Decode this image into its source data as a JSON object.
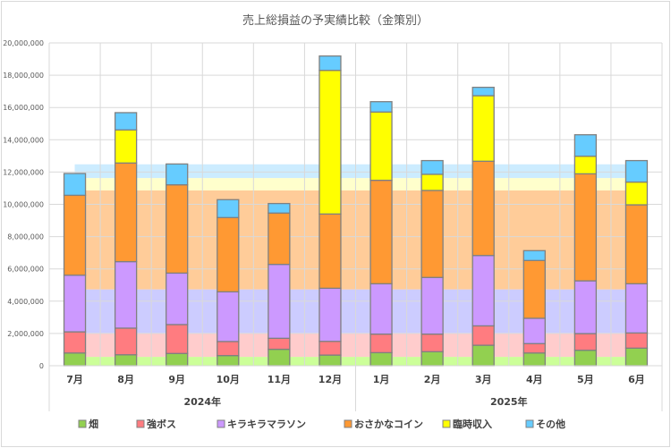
{
  "chart_data": {
    "type": "bar",
    "stacked": true,
    "title": "売上総損益の予実績比較（金策別）",
    "xlabel": "",
    "ylabel": "",
    "ylim": [
      0,
      20000000
    ],
    "ytick_step": 2000000,
    "y_tick_labels": [
      "0",
      "2,000,000",
      "4,000,000",
      "6,000,000",
      "8,000,000",
      "10,000,000",
      "12,000,000",
      "14,000,000",
      "16,000,000",
      "18,000,000",
      "20,000,000"
    ],
    "grid": true,
    "legend_position": "bottom",
    "categories": [
      "7月",
      "8月",
      "9月",
      "10月",
      "11月",
      "12月",
      "1月",
      "2月",
      "3月",
      "4月",
      "5月",
      "6月"
    ],
    "groups": [
      {
        "label": "2024年",
        "count": 6
      },
      {
        "label": "2025年",
        "count": 6
      }
    ],
    "series": [
      {
        "name": "畑",
        "color": "#92D050",
        "budget_color": "#CCFF99",
        "values": [
          790000,
          680000,
          760000,
          630000,
          1020000,
          660000,
          810000,
          870000,
          1270000,
          790000,
          960000,
          1090000
        ],
        "budget": 550000
      },
      {
        "name": "強ボス",
        "color": "#FF7C80",
        "budget_color": "#FFCCCC",
        "values": [
          1310000,
          1650000,
          1790000,
          870000,
          680000,
          850000,
          1150000,
          1090000,
          1200000,
          580000,
          1030000,
          940000
        ],
        "budget": 1480000
      },
      {
        "name": "キラキラマラソン",
        "color": "#CC99FF",
        "budget_color": "#CCCCFF",
        "values": [
          3510000,
          4120000,
          3190000,
          3080000,
          4580000,
          3290000,
          3120000,
          3510000,
          4360000,
          1570000,
          3270000,
          3050000
        ],
        "budget": 2700000
      },
      {
        "name": "おさかなコイン",
        "color": "#FF9933",
        "budget_color": "#FFCC99",
        "values": [
          4950000,
          6110000,
          5470000,
          4600000,
          3180000,
          4600000,
          6410000,
          5390000,
          5840000,
          3580000,
          6630000,
          4890000
        ],
        "budget": 6130000
      },
      {
        "name": "臨時収入",
        "color": "#FFFF00",
        "budget_color": "#FFFFCC",
        "values": [
          0,
          2050000,
          0,
          0,
          0,
          8900000,
          4230000,
          1000000,
          4060000,
          0,
          1090000,
          1410000
        ],
        "budget": 770000
      },
      {
        "name": "その他",
        "color": "#66CCFF",
        "budget_color": "#CCECFF",
        "values": [
          1350000,
          1070000,
          1290000,
          1110000,
          590000,
          890000,
          640000,
          850000,
          520000,
          610000,
          1330000,
          1330000
        ],
        "budget": 850000
      }
    ]
  }
}
